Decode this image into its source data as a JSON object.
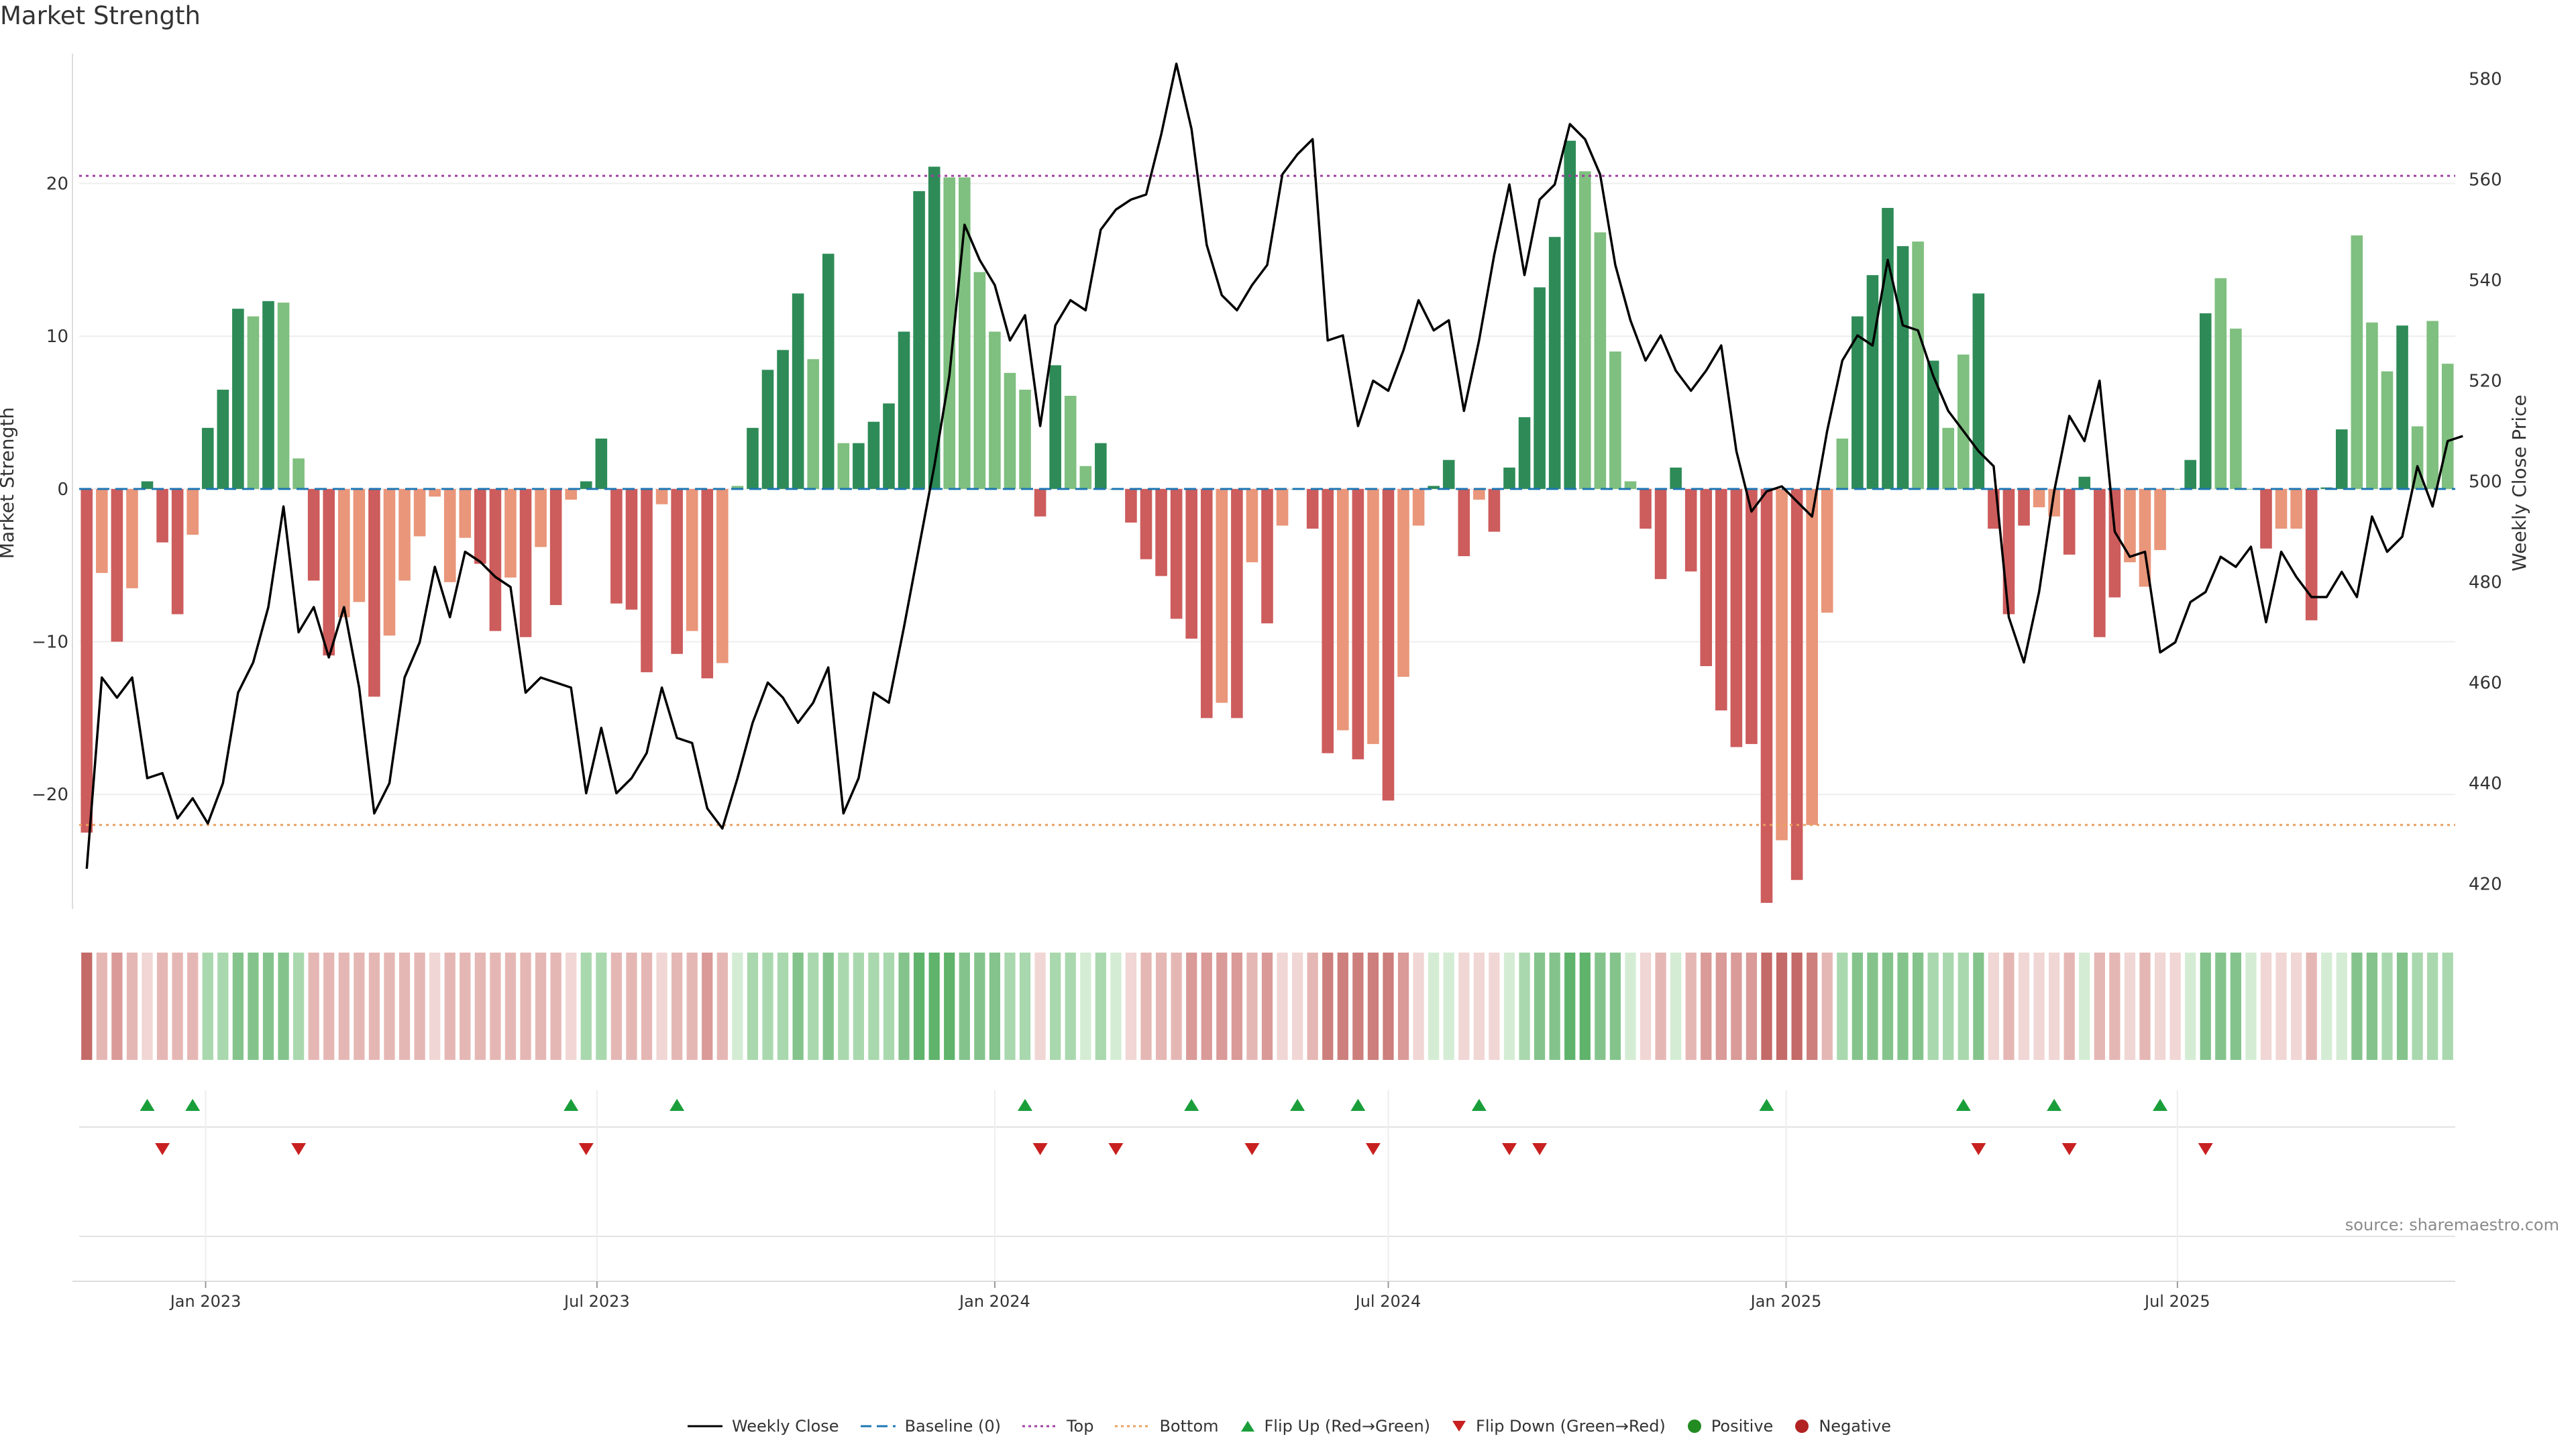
{
  "title": "Market Strength",
  "source": "source: sharemaestro.com",
  "legend": {
    "weekly_close": "Weekly Close",
    "baseline": "Baseline (0)",
    "top": "Top",
    "bottom": "Bottom",
    "flip_up": "Flip Up (Red→Green)",
    "flip_down": "Flip Down (Green→Red)",
    "positive": "Positive",
    "negative": "Negative"
  },
  "colors": {
    "dark_green": "#2e8b57",
    "light_green": "#7fbf7f",
    "dark_red": "#cd5c5c",
    "light_red": "#e9967a",
    "price_line": "#000000",
    "baseline": "#1f77b4",
    "top": "#a040a0",
    "bottom": "#e8a060",
    "flip_up": "#1a9e3a",
    "flip_down": "#c82020"
  },
  "chart_data": {
    "type": "bar",
    "start_date": "2022-11-07",
    "frequency": "weekly",
    "ylabel_left": "Market Strength",
    "ylabel_right": "Weekly Close Price",
    "ylim_left": [
      -27.5,
      28.5
    ],
    "ylim_right": [
      415,
      585
    ],
    "yticks_left": [
      -20,
      -10,
      0,
      10,
      20
    ],
    "yticks_right": [
      420,
      440,
      460,
      480,
      500,
      520,
      540,
      560,
      580
    ],
    "x_tick_labels": [
      "Jan 2023",
      "Jul 2023",
      "Jan 2024",
      "Jul 2024",
      "Jan 2025",
      "Jul 2025"
    ],
    "x_tick_dates": [
      "2023-01-01",
      "2023-07-01",
      "2024-01-01",
      "2024-07-01",
      "2025-01-01",
      "2025-07-01"
    ],
    "top_threshold": 20.5,
    "bottom_threshold": -22,
    "strength": [
      -22.5,
      -5.5,
      -10,
      -6.5,
      0.5,
      -3.5,
      -8.2,
      -3,
      4,
      6.5,
      11.8,
      11.3,
      12.3,
      12.2,
      2,
      -6,
      -10.9,
      -8.4,
      -7.4,
      -13.6,
      -9.6,
      -6,
      -3.1,
      -0.5,
      -6.1,
      -3.2,
      -4.9,
      -9.3,
      -5.8,
      -9.7,
      -3.8,
      -7.6,
      -0.7,
      0.5,
      3.3,
      -7.5,
      -7.9,
      -12,
      -1,
      -10.8,
      -9.3,
      -12.4,
      -11.4,
      0.2,
      4,
      7.8,
      9.1,
      12.8,
      8.5,
      15.4,
      3,
      3,
      4.4,
      5.6,
      10.3,
      19.5,
      21.1,
      20.4,
      20.4,
      14.2,
      10.3,
      7.6,
      6.5,
      -1.8,
      8.1,
      6.1,
      1.5,
      3,
      0,
      -2.2,
      -4.6,
      -5.7,
      -8.5,
      -9.8,
      -15,
      -14,
      -15,
      -4.8,
      -8.8,
      -2.4,
      0,
      -2.6,
      -17.3,
      -15.8,
      -17.7,
      -16.7,
      -20.4,
      -12.3,
      -2.4,
      0.2,
      1.9,
      -4.4,
      -0.7,
      -2.8,
      1.4,
      4.7,
      13.2,
      16.5,
      22.8,
      20.8,
      16.8,
      9,
      0.5,
      -2.6,
      -5.9,
      1.4,
      -5.4,
      -11.6,
      -14.5,
      -16.9,
      -16.7,
      -27.1,
      -23,
      -25.6,
      -22,
      -8.1,
      3.3,
      11.3,
      14,
      18.4,
      15.9,
      16.2,
      8.4,
      4,
      8.8,
      12.8,
      -2.6,
      -8.2,
      -2.4,
      -1.2,
      -1.8,
      -4.3,
      0.8,
      -9.7,
      -7.1,
      -4.8,
      -6.4,
      -4,
      0,
      1.9,
      11.5,
      13.8,
      10.5,
      0,
      -3.9,
      -2.6,
      -2.6,
      -8.6,
      0.1,
      3.9,
      16.6,
      10.9,
      7.7,
      10.7,
      4.1,
      11,
      8.2
    ],
    "bar_shade": [
      2,
      1,
      2,
      1,
      2,
      2,
      2,
      1,
      2,
      2,
      2,
      1,
      2,
      1,
      1,
      2,
      2,
      1,
      1,
      2,
      1,
      1,
      1,
      1,
      1,
      1,
      2,
      2,
      1,
      2,
      1,
      2,
      1,
      2,
      2,
      2,
      2,
      2,
      1,
      2,
      1,
      2,
      1,
      1,
      2,
      2,
      2,
      2,
      1,
      2,
      1,
      2,
      2,
      2,
      2,
      2,
      2,
      1,
      1,
      1,
      1,
      1,
      1,
      2,
      2,
      1,
      1,
      2,
      2,
      2,
      2,
      2,
      2,
      2,
      2,
      1,
      2,
      1,
      2,
      1,
      2,
      2,
      2,
      1,
      2,
      1,
      2,
      1,
      1,
      2,
      2,
      2,
      1,
      2,
      2,
      2,
      2,
      2,
      2,
      1,
      1,
      1,
      1,
      2,
      2,
      2,
      2,
      2,
      2,
      2,
      2,
      2,
      1,
      2,
      1,
      1,
      1,
      2,
      2,
      2,
      2,
      1,
      2,
      1,
      1,
      2,
      2,
      2,
      2,
      1,
      1,
      2,
      2,
      2,
      2,
      1,
      1,
      1,
      2,
      2,
      2,
      1,
      1,
      1,
      2,
      1,
      1,
      2,
      2,
      2,
      1,
      1,
      1,
      2,
      1,
      1,
      1,
      1,
      1
    ],
    "weekly_close": [
      423,
      461,
      457,
      461,
      441,
      442,
      433,
      437,
      432,
      440,
      458,
      464,
      475,
      495,
      470,
      475,
      465,
      475,
      459,
      434,
      440,
      461,
      468,
      483,
      473,
      486,
      484,
      481,
      479,
      458,
      461,
      460,
      459,
      438,
      451,
      438,
      441,
      446,
      459,
      449,
      448,
      435,
      431,
      441,
      452,
      460,
      457,
      452,
      456,
      463,
      434,
      441,
      458,
      456,
      471,
      487,
      503,
      521,
      551,
      544,
      539,
      528,
      533,
      511,
      531,
      536,
      534,
      550,
      554,
      556,
      557,
      569,
      583,
      570,
      547,
      537,
      534,
      539,
      543,
      561,
      565,
      568,
      528,
      529,
      511,
      520,
      518,
      526,
      536,
      530,
      532,
      514,
      528,
      545,
      559,
      541,
      556,
      559,
      571,
      568,
      561,
      543,
      532,
      524,
      529,
      522,
      518,
      522,
      527,
      506,
      494,
      498,
      499,
      496,
      493,
      510,
      524,
      529,
      527,
      544,
      531,
      530,
      521,
      514,
      510,
      506,
      503,
      473,
      464,
      478,
      498,
      513,
      508,
      520,
      490,
      485,
      486,
      466,
      468,
      476,
      478,
      485,
      483,
      487,
      472,
      486,
      481,
      477,
      477,
      482,
      477,
      493,
      486,
      489,
      503,
      495,
      508,
      509
    ],
    "heat_shade": [
      -5,
      -2,
      -3,
      -2,
      -1,
      -2,
      -2,
      -2,
      2,
      2,
      3,
      3,
      3,
      3,
      2,
      -2,
      -2,
      -2,
      -2,
      -2,
      -2,
      -2,
      -2,
      -1,
      -2,
      -2,
      -2,
      -2,
      -2,
      -2,
      -2,
      -2,
      -1,
      2,
      2,
      -2,
      -2,
      -2,
      -1,
      -2,
      -2,
      -3,
      -2,
      1,
      2,
      2,
      2,
      3,
      2,
      3,
      2,
      2,
      2,
      2,
      3,
      4,
      4,
      4,
      3,
      3,
      3,
      2,
      2,
      -1,
      2,
      2,
      1,
      2,
      1,
      -1,
      -2,
      -2,
      -2,
      -3,
      -3,
      -3,
      -3,
      -2,
      -3,
      -1,
      -1,
      -2,
      -4,
      -4,
      -4,
      -4,
      -4,
      -3,
      -1,
      1,
      1,
      -1,
      -1,
      -1,
      1,
      2,
      3,
      3,
      4,
      4,
      3,
      3,
      1,
      -1,
      -2,
      1,
      -2,
      -3,
      -3,
      -3,
      -3,
      -5,
      -5,
      -5,
      -4,
      -2,
      2,
      3,
      3,
      3,
      3,
      3,
      2,
      2,
      2,
      3,
      -1,
      -2,
      -1,
      -1,
      -1,
      -2,
      1,
      -2,
      -2,
      -1,
      -2,
      -1,
      -1,
      1,
      3,
      3,
      3,
      1,
      -1,
      -1,
      -1,
      -2,
      1,
      1,
      3,
      3,
      2,
      3,
      2,
      2,
      2
    ],
    "flip_up_dates": [
      "2022-12-05",
      "2022-12-26",
      "2023-06-19",
      "2023-08-07",
      "2024-01-15",
      "2024-04-01",
      "2024-05-20",
      "2024-06-17",
      "2024-08-12",
      "2024-12-23",
      "2025-03-24",
      "2025-05-05",
      "2025-06-23"
    ],
    "flip_down_dates": [
      "2022-12-12",
      "2023-02-13",
      "2023-06-26",
      "2024-01-22",
      "2024-02-26",
      "2024-04-29",
      "2024-06-24",
      "2024-08-26",
      "2024-09-09",
      "2025-03-31",
      "2025-05-12",
      "2025-07-14"
    ]
  }
}
